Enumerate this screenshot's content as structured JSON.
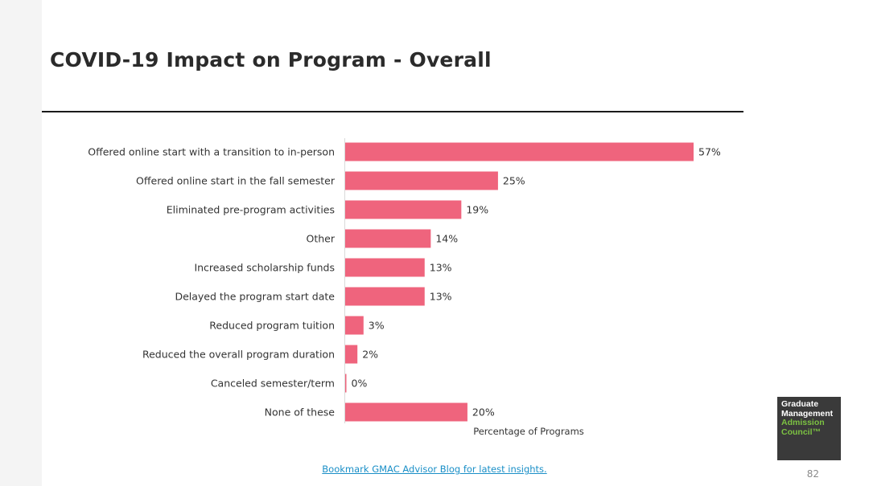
{
  "title": "COVID-19 Impact on Program - Overall",
  "footer_link": "Bookmark GMAC Advisor Blog for latest insights.",
  "page_number": "82",
  "logo": {
    "line1": "Graduate",
    "line2": "Management",
    "line3": "Admission",
    "line4": "Council™"
  },
  "colors": {
    "bar": "#ef647d",
    "title": "#2b2b2b",
    "link": "#1a8fc7",
    "logo_bg": "#3a3a3a",
    "logo_accent": "#7cc242"
  },
  "chart_data": {
    "type": "bar",
    "orientation": "horizontal",
    "categories": [
      "Offered online start with a transition to in-person",
      "Offered online start in the fall semester",
      "Eliminated pre-program activities",
      "Other",
      "Increased scholarship funds",
      "Delayed the program start date",
      "Reduced program tuition",
      "Reduced the overall program duration",
      "Canceled semester/term",
      "None of these"
    ],
    "values": [
      57,
      25,
      19,
      14,
      13,
      13,
      3,
      2,
      0,
      20
    ],
    "value_labels": [
      "57%",
      "25%",
      "19%",
      "14%",
      "13%",
      "13%",
      "3%",
      "2%",
      "0%",
      "20%"
    ],
    "xlabel": "Percentage of Programs",
    "ylabel": "",
    "xlim": [
      0,
      60
    ],
    "grid": false,
    "legend": "none"
  }
}
